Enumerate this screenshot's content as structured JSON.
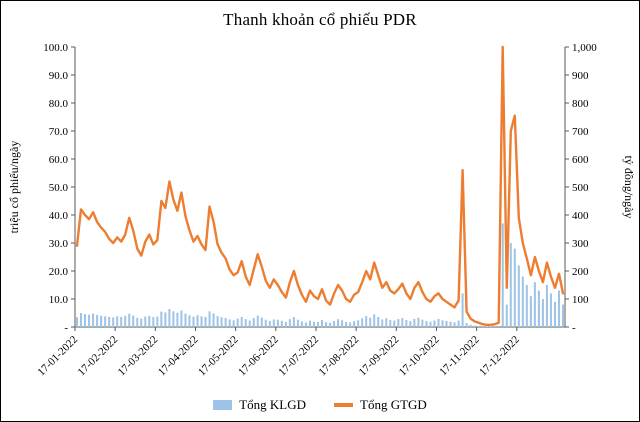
{
  "title": "Thanh khoản cổ phiếu PDR",
  "left_axis": {
    "label": "triệu cổ phiếu/ngày",
    "ticks": [
      "100.0",
      "90.0",
      "80.0",
      "70.0",
      "60.0",
      "50.0",
      "40.0",
      "30.0",
      "20.0",
      "10.0",
      "-"
    ]
  },
  "right_axis": {
    "label": "tỷ đồng/ngày",
    "ticks": [
      "1,000",
      "900",
      "800",
      "700",
      "600",
      "500",
      "400",
      "300",
      "200",
      "100",
      "-"
    ]
  },
  "legend": [
    {
      "label": "Tổng KLGD",
      "color": "#9DC3E6",
      "marker": "bar"
    },
    {
      "label": "Tổng GTGD",
      "color": "#ED7D31",
      "marker": "line"
    }
  ],
  "chart_data": {
    "type": "combo-bar-line",
    "title": "Thanh khoản cổ phiếu PDR",
    "x_tick_labels": [
      "17-01-2022",
      "17-02-2022",
      "17-03-2022",
      "17-04-2022",
      "17-05-2022",
      "17-06-2022",
      "17-07-2022",
      "17-08-2022",
      "17-09-2022",
      "17-10-2022",
      "17-11-2022",
      "17-12-2022"
    ],
    "x_tick_indices": [
      0,
      10,
      20,
      30,
      40,
      50,
      60,
      70,
      80,
      90,
      100,
      110
    ],
    "left_ylim": [
      0,
      100
    ],
    "right_ylim": [
      0,
      1000
    ],
    "grid": false,
    "legend_position": "bottom",
    "series": [
      {
        "name": "Tổng KLGD",
        "type": "bar",
        "axis": "left",
        "units": "triệu cổ phiếu/ngày",
        "color": "#9DC3E6",
        "values": [
          3.5,
          5.0,
          4.6,
          4.4,
          4.8,
          4.3,
          4.0,
          3.8,
          3.6,
          3.4,
          3.8,
          3.6,
          4.0,
          4.7,
          4.1,
          3.3,
          3.0,
          3.7,
          4.0,
          3.5,
          3.7,
          5.5,
          5.2,
          6.4,
          5.6,
          5.1,
          5.9,
          4.8,
          4.2,
          3.7,
          4.2,
          3.8,
          3.6,
          5.6,
          4.9,
          3.9,
          3.5,
          3.2,
          2.7,
          2.4,
          3.0,
          3.6,
          2.8,
          2.3,
          3.2,
          4.1,
          3.4,
          2.6,
          2.2,
          2.7,
          2.6,
          2.2,
          1.8,
          2.8,
          3.5,
          2.6,
          2.0,
          1.6,
          2.3,
          1.9,
          1.8,
          2.5,
          1.7,
          1.5,
          2.2,
          2.8,
          2.4,
          1.8,
          1.6,
          2.1,
          2.4,
          3.1,
          3.9,
          3.3,
          4.5,
          3.6,
          2.7,
          3.1,
          2.5,
          2.3,
          2.8,
          3.2,
          2.5,
          2.1,
          2.9,
          3.3,
          2.6,
          2.1,
          1.9,
          2.3,
          2.9,
          2.4,
          2.2,
          1.9,
          1.7,
          2.3,
          12.0,
          1.4,
          0.8,
          0.5,
          0.4,
          0.3,
          0.2,
          0.2,
          0.3,
          0.4,
          37.0,
          8.0,
          30.0,
          28.0,
          22.0,
          18.0,
          15.0,
          11.0,
          16.0,
          13.0,
          10.0,
          15.0,
          12.0,
          9.0,
          13.0,
          8.0
        ]
      },
      {
        "name": "Tổng GTGD",
        "type": "line",
        "axis": "right",
        "units": "tỷ đồng/ngày",
        "color": "#ED7D31",
        "values": [
          290,
          420,
          400,
          385,
          410,
          375,
          355,
          340,
          315,
          300,
          320,
          305,
          330,
          390,
          345,
          280,
          255,
          305,
          330,
          295,
          310,
          450,
          425,
          520,
          455,
          415,
          480,
          395,
          345,
          305,
          325,
          295,
          275,
          430,
          375,
          295,
          265,
          245,
          205,
          185,
          195,
          235,
          180,
          150,
          205,
          260,
          215,
          165,
          140,
          170,
          150,
          125,
          105,
          160,
          200,
          150,
          115,
          90,
          130,
          110,
          100,
          135,
          95,
          80,
          120,
          150,
          130,
          100,
          90,
          115,
          125,
          160,
          200,
          170,
          230,
          185,
          140,
          160,
          130,
          120,
          135,
          155,
          120,
          100,
          140,
          160,
          125,
          100,
          90,
          110,
          120,
          100,
          90,
          80,
          70,
          95,
          560,
          55,
          30,
          20,
          15,
          10,
          8,
          8,
          10,
          15,
          1000,
          140,
          700,
          755,
          390,
          300,
          245,
          185,
          250,
          200,
          160,
          230,
          180,
          140,
          190,
          120
        ]
      }
    ]
  }
}
